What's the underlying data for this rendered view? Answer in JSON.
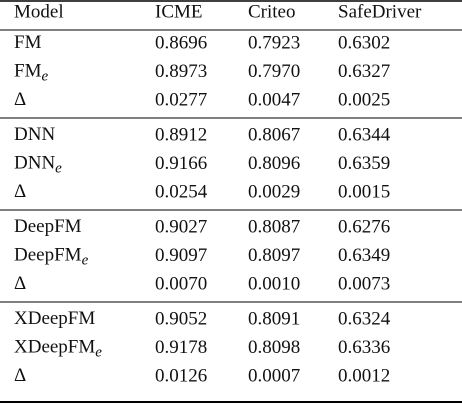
{
  "table": {
    "header": [
      "Model",
      "ICME",
      "Criteo",
      "SafeDriver"
    ],
    "groups": [
      {
        "rows": [
          {
            "model": "FM",
            "values": [
              "0.8696",
              "0.7923",
              "0.6302"
            ]
          },
          {
            "model": "FM",
            "sub": "e",
            "values": [
              "0.8973",
              "0.7970",
              "0.6327"
            ]
          },
          {
            "model": "Δ",
            "values": [
              "0.0277",
              "0.0047",
              "0.0025"
            ]
          }
        ]
      },
      {
        "rows": [
          {
            "model": "DNN",
            "values": [
              "0.8912",
              "0.8067",
              "0.6344"
            ]
          },
          {
            "model": "DNN",
            "sub": "e",
            "values": [
              "0.9166",
              "0.8096",
              "0.6359"
            ]
          },
          {
            "model": "Δ",
            "values": [
              "0.0254",
              "0.0029",
              "0.0015"
            ]
          }
        ]
      },
      {
        "rows": [
          {
            "model": "DeepFM",
            "values": [
              "0.9027",
              "0.8087",
              "0.6276"
            ]
          },
          {
            "model": "DeepFM",
            "sub": "e",
            "values": [
              "0.9097",
              "0.8097",
              "0.6349"
            ]
          },
          {
            "model": "Δ",
            "values": [
              "0.0070",
              "0.0010",
              "0.0073"
            ]
          }
        ]
      },
      {
        "rows": [
          {
            "model": "XDeepFM",
            "values": [
              "0.9052",
              "0.8091",
              "0.6324"
            ]
          },
          {
            "model": "XDeepFM",
            "sub": "e",
            "values": [
              "0.9178",
              "0.8098",
              "0.6336"
            ]
          },
          {
            "model": "Δ",
            "values": [
              "0.0126",
              "0.0007",
              "0.0012"
            ]
          }
        ]
      }
    ]
  }
}
